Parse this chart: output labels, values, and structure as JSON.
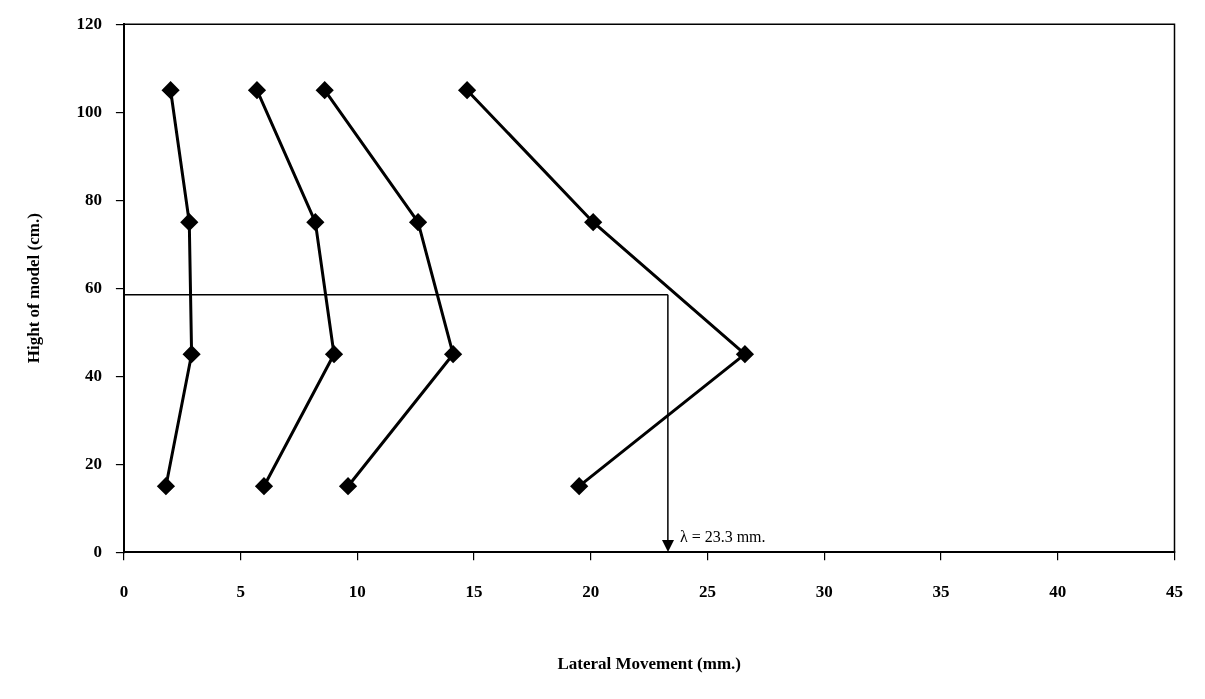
{
  "chart_data": {
    "type": "line",
    "xlabel": "Lateral Movement (mm.)",
    "ylabel": "Hight of model (cm.)",
    "series": [
      {
        "color": "#000000",
        "x": [
          2.0,
          2.8,
          2.9,
          1.8
        ],
        "values": [
          105,
          75,
          45,
          15
        ]
      },
      {
        "color": "#000000",
        "x": [
          5.7,
          8.2,
          9.0,
          6.0
        ],
        "values": [
          105,
          75,
          45,
          15
        ]
      },
      {
        "color": "#000000",
        "x": [
          8.6,
          12.6,
          14.1,
          9.6
        ],
        "values": [
          105,
          75,
          45,
          15
        ]
      },
      {
        "color": "#000000",
        "x": [
          14.7,
          20.1,
          26.6,
          19.5
        ],
        "values": [
          105,
          75,
          45,
          15
        ]
      }
    ],
    "xlim": [
      0,
      45
    ],
    "xticks": [
      0,
      5,
      10,
      15,
      20,
      25,
      30,
      35,
      40,
      45
    ],
    "ylim": [
      0,
      120
    ],
    "yticks": [
      0,
      20,
      40,
      60,
      80,
      100,
      120
    ],
    "ref_lines": [
      {
        "axis": "y",
        "value": 58.5,
        "color": "#000000"
      },
      {
        "axis": "x",
        "value": 23.3,
        "label": "λ = 23.3 mm.",
        "color": "#000000"
      }
    ],
    "marker": "diamond",
    "line_style": "solid",
    "grid": false,
    "legend": false
  }
}
